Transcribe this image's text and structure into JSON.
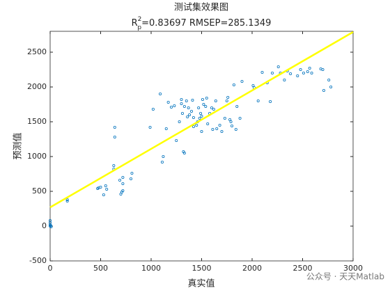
{
  "chart_data": {
    "type": "scatter",
    "title": "测试集效果图",
    "subtitle": {
      "base": "R",
      "sup": "2",
      "sub": "p",
      "text": "=0.83697  RMSEP=285.1349"
    },
    "xlabel": "真实值",
    "ylabel": "预测值",
    "color": "#0072bd",
    "x": [
      0,
      0,
      0,
      0,
      5,
      10,
      170,
      170,
      470,
      480,
      500,
      530,
      550,
      560,
      630,
      640,
      640,
      630,
      690,
      700,
      710,
      720,
      720,
      720,
      800,
      810,
      990,
      1020,
      1090,
      1110,
      1120,
      1150,
      1170,
      1200,
      1230,
      1250,
      1280,
      1300,
      1300,
      1310,
      1320,
      1330,
      1330,
      1350,
      1360,
      1370,
      1380,
      1400,
      1410,
      1420,
      1420,
      1450,
      1460,
      1470,
      1480,
      1490,
      1500,
      1500,
      1510,
      1520,
      1540,
      1550,
      1560,
      1580,
      1600,
      1610,
      1620,
      1640,
      1650,
      1680,
      1700,
      1730,
      1750,
      1760,
      1780,
      1790,
      1800,
      1820,
      1840,
      1850,
      1880,
      1900,
      2010,
      2020,
      2060,
      2100,
      2150,
      2180,
      2200,
      2260,
      2280,
      2320,
      2350,
      2380,
      2450,
      2480,
      2510,
      2550,
      2570,
      2590,
      2680,
      2700,
      2710,
      2760,
      2780
    ],
    "values": [
      0,
      20,
      50,
      80,
      10,
      -10,
      360,
      380,
      540,
      550,
      560,
      450,
      580,
      530,
      870,
      1420,
      1280,
      820,
      660,
      460,
      490,
      510,
      610,
      700,
      680,
      760,
      1420,
      1680,
      1900,
      920,
      1000,
      1400,
      1780,
      1710,
      1730,
      1230,
      1500,
      1820,
      1760,
      1620,
      1070,
      1050,
      1720,
      1800,
      1570,
      1700,
      1600,
      1650,
      1810,
      1430,
      1560,
      1450,
      1500,
      1700,
      1550,
      1620,
      1580,
      1360,
      1820,
      1750,
      1720,
      1840,
      1470,
      1620,
      1700,
      1390,
      1680,
      1800,
      1400,
      1450,
      1360,
      1550,
      1800,
      1850,
      1530,
      1500,
      1440,
      2030,
      1390,
      1720,
      1550,
      2080,
      2020,
      1990,
      1800,
      2210,
      2060,
      1790,
      2200,
      2290,
      2200,
      2100,
      2230,
      2190,
      2160,
      2250,
      2200,
      2220,
      2270,
      2200,
      2260,
      2250,
      1950,
      2100,
      2000
    ],
    "fit_line": {
      "x": [
        0,
        3000
      ],
      "y": [
        270,
        2790
      ],
      "color": "#ffff00"
    },
    "xlim": [
      0,
      3000
    ],
    "xticks": [
      0,
      500,
      1000,
      1500,
      2000,
      2500,
      3000
    ],
    "ylim": [
      -500,
      2800
    ],
    "yticks": [
      -500,
      0,
      500,
      1000,
      1500,
      2000,
      2500
    ],
    "grid": false,
    "watermark": "公众号 · 天天Matlab"
  }
}
